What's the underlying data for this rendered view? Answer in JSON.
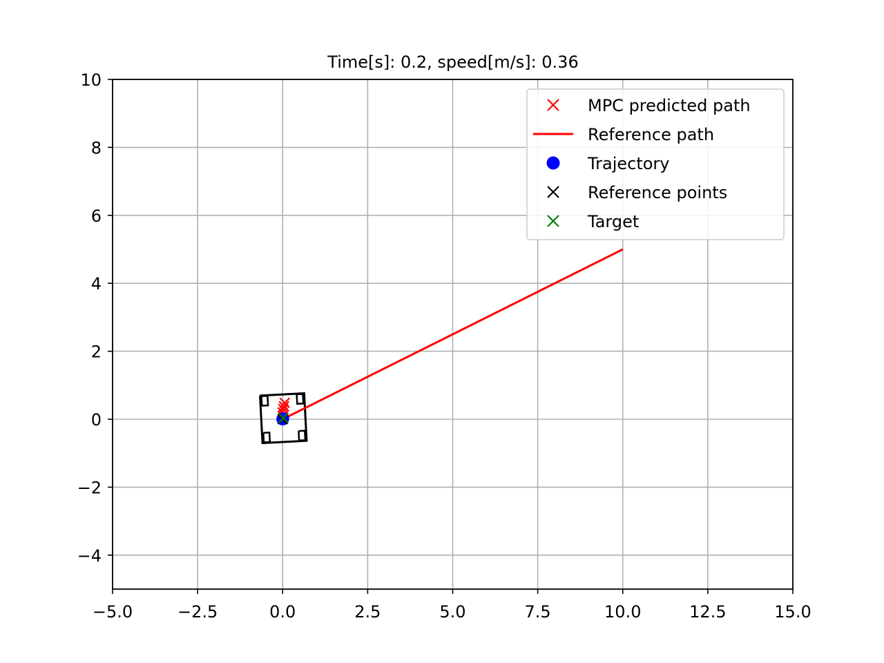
{
  "chart_data": {
    "type": "scatter",
    "title": "Time[s]: 0.2, speed[m/s]: 0.36",
    "xlabel": "",
    "ylabel": "",
    "xlim": [
      -5,
      15
    ],
    "ylim": [
      -5,
      10
    ],
    "x_ticks": [
      -5.0,
      -2.5,
      0.0,
      2.5,
      5.0,
      7.5,
      10.0,
      12.5,
      15.0
    ],
    "x_tick_labels": [
      "−5.0",
      "−2.5",
      "0.0",
      "2.5",
      "5.0",
      "7.5",
      "10.0",
      "12.5",
      "15.0"
    ],
    "y_ticks": [
      -4,
      -2,
      0,
      2,
      4,
      6,
      8,
      10
    ],
    "y_tick_labels": [
      "−4",
      "−2",
      "0",
      "2",
      "4",
      "6",
      "8",
      "10"
    ],
    "grid": true,
    "legend_position": "top-right",
    "series": [
      {
        "name": "MPC predicted path",
        "marker": "x",
        "color": "#ff0000",
        "points": [
          [
            0.0,
            0.1
          ],
          [
            0.0,
            0.2
          ],
          [
            0.02,
            0.3
          ],
          [
            0.04,
            0.38
          ],
          [
            0.06,
            0.48
          ]
        ]
      },
      {
        "name": "Reference path",
        "marker": "line",
        "color": "#ff0000",
        "points": [
          [
            0.0,
            0.0
          ],
          [
            10.0,
            5.0
          ]
        ]
      },
      {
        "name": "Trajectory",
        "marker": "o",
        "color": "#0000ff",
        "points": [
          [
            0.0,
            0.0
          ],
          [
            0.01,
            0.02
          ]
        ]
      },
      {
        "name": "Reference points",
        "marker": "x",
        "color": "#000000",
        "points": [
          [
            0.0,
            0.0
          ]
        ]
      },
      {
        "name": "Target",
        "marker": "x",
        "color": "#008000",
        "points": [
          [
            0.02,
            0.03
          ]
        ]
      }
    ],
    "vehicle_outline": {
      "color": "#000000",
      "center": [
        0.02,
        0.03
      ],
      "body_length": 1.4,
      "body_width": 1.3,
      "heading_deg": 93,
      "wheel_length": 0.28,
      "wheel_width": 0.18
    }
  }
}
